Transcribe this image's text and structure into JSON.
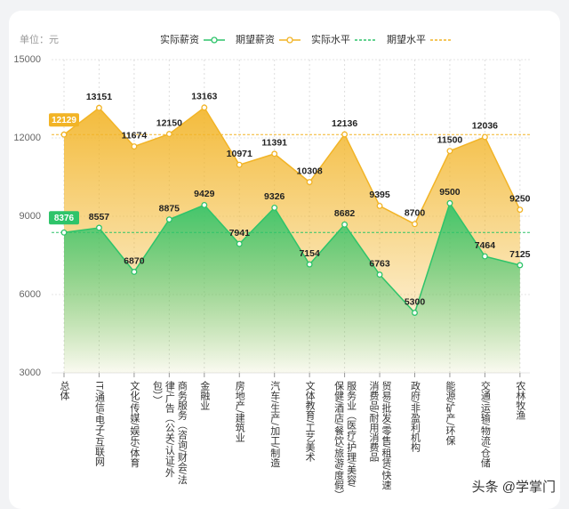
{
  "chart_data": {
    "type": "line",
    "unit_label": "单位：元",
    "categories": [
      "总体",
      "IT/通信/电子/互联网",
      "文化/传媒/娱乐/体育",
      "商务服务（咨询/财会/法律/广告（公关/认证/外包））",
      "金融业",
      "房地产/建筑业",
      "汽车/生产/加工/制造",
      "文体教育/工艺美术",
      "服务业（医疗/护理/美容/保健/酒店/餐饮/旅游/度假）",
      "贸易/批发/零售/租赁/快速消费品/耐用消费品",
      "政府/非盈利机构",
      "能源/矿产/环保",
      "交通/运输/物流/仓储",
      "农林牧渔"
    ],
    "series": [
      {
        "name": "实际薪资",
        "color": "#2ec46a",
        "values": [
          8376,
          8557,
          6870,
          8875,
          9429,
          7941,
          9326,
          7154,
          8682,
          6763,
          5300,
          9500,
          7464,
          7125
        ]
      },
      {
        "name": "期望薪资",
        "color": "#f2b426",
        "values": [
          12129,
          13151,
          11674,
          12150,
          13163,
          10971,
          11391,
          10308,
          12136,
          9395,
          8700,
          11500,
          12036,
          9250
        ]
      }
    ],
    "reference_lines": [
      {
        "name": "实际水平",
        "color": "#2ec46a",
        "value": 8376
      },
      {
        "name": "期望水平",
        "color": "#f2b426",
        "value": 12129
      }
    ],
    "ylim": [
      3000,
      15000
    ],
    "yticks": [
      3000,
      6000,
      9000,
      12000,
      15000
    ],
    "grid": true,
    "watermark": "头条 @学掌门"
  }
}
